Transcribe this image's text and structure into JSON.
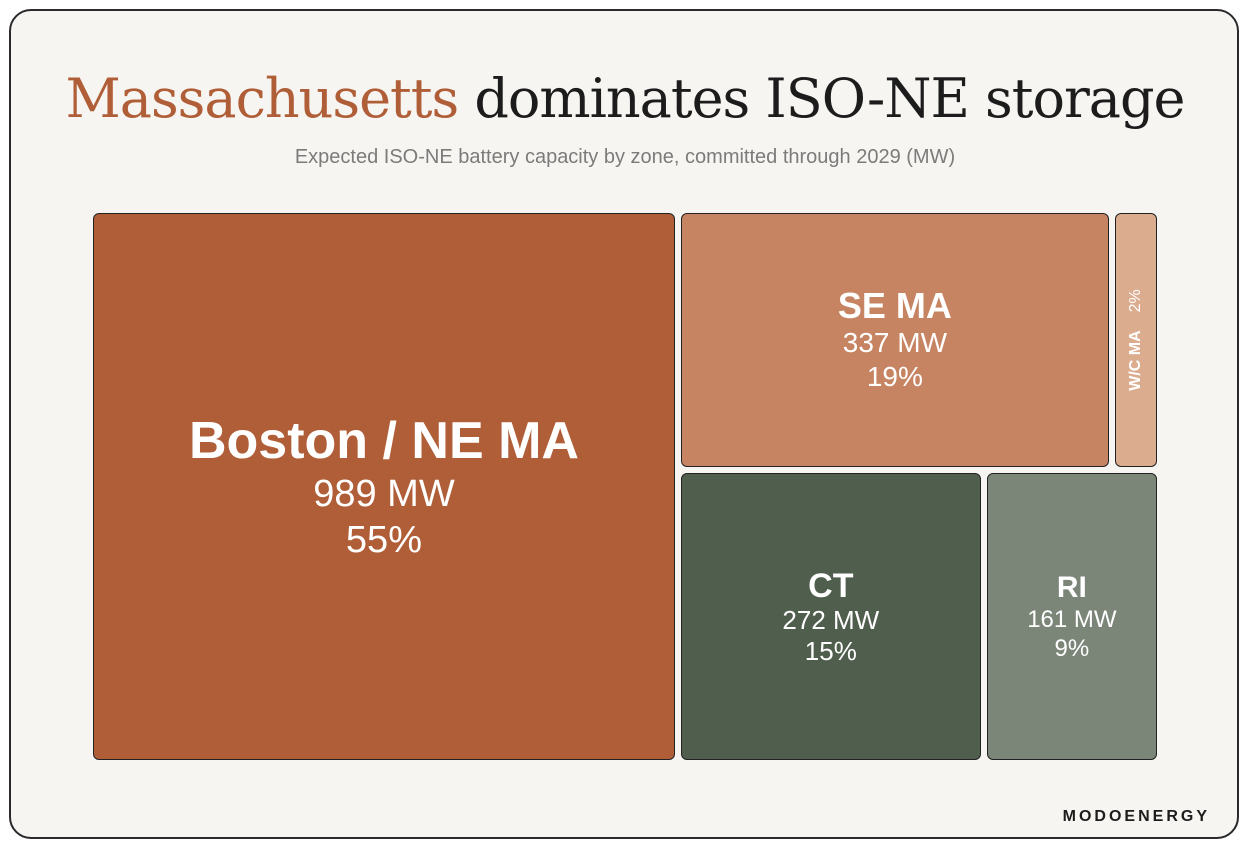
{
  "title_accent": "Massachusetts",
  "title_rest": "dominates ISO-NE storage",
  "subtitle": "Expected ISO-NE battery capacity by zone, committed through 2029 (MW)",
  "brand": "MODOENERGY",
  "chart_data": {
    "type": "treemap",
    "unit": "MW",
    "items": [
      {
        "key": "boston",
        "name": "Boston / NE MA",
        "value": 989,
        "value_label": "989 MW",
        "percent": 55,
        "percent_label": "55%",
        "color": "#b05e38"
      },
      {
        "key": "sema",
        "name": "SE MA",
        "value": 337,
        "value_label": "337 MW",
        "percent": 19,
        "percent_label": "19%",
        "color": "#c68462"
      },
      {
        "key": "wcma",
        "name": "W/C MA",
        "value": 40,
        "value_label": "",
        "percent": 2,
        "percent_label": "2%",
        "color": "#dcac8f"
      },
      {
        "key": "ct",
        "name": "CT",
        "value": 272,
        "value_label": "272 MW",
        "percent": 15,
        "percent_label": "15%",
        "color": "#505e4d"
      },
      {
        "key": "ri",
        "name": "RI",
        "value": 161,
        "value_label": "161 MW",
        "percent": 9,
        "percent_label": "9%",
        "color": "#7b8679"
      }
    ]
  }
}
